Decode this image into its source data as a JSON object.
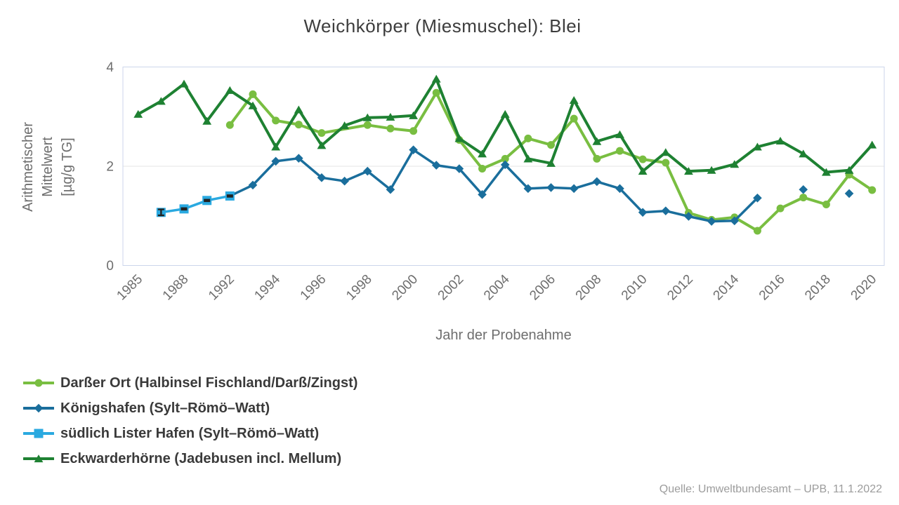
{
  "chart": {
    "title": "Weichkörper (Miesmuschel): Blei",
    "x_axis": {
      "title": "Jahr der Probenahme",
      "label_every_nth": 2
    },
    "y_axis": {
      "title_lines": [
        "Arithmetischer",
        "Mittelwert",
        "[µg/g TG]"
      ],
      "ticks": [
        0,
        2,
        4
      ]
    },
    "source": "Quelle: Umweltbundesamt – UPB, 11.1.2022",
    "colors": {
      "grid": "#e6e6e6",
      "plot_border": "#ccd6eb",
      "tick_text": "#6e6e6e",
      "error_bar": "#222222"
    }
  },
  "chart_data": {
    "type": "line",
    "title": "Weichkörper (Miesmuschel): Blei",
    "xlabel": "Jahr der Probenahme",
    "ylabel": "Arithmetischer Mittelwert [µg/g TG]",
    "ylim": [
      0,
      4
    ],
    "grid": "horizontal-at-2-only",
    "legend_position": "bottom-left",
    "categories": [
      1985,
      1986,
      1988,
      1990,
      1992,
      1993,
      1994,
      1995,
      1996,
      1997,
      1998,
      1999,
      2000,
      2001,
      2002,
      2003,
      2004,
      2005,
      2006,
      2007,
      2008,
      2009,
      2010,
      2011,
      2012,
      2013,
      2014,
      2015,
      2016,
      2017,
      2018,
      2019,
      2020
    ],
    "series": [
      {
        "name": "Darßer Ort (Halbinsel Fischland/Darß/Zingst)",
        "marker": "circle",
        "color": "#79be41",
        "line_width": 4,
        "points": [
          {
            "year": 1992,
            "value": 2.83
          },
          {
            "year": 1993,
            "value": 3.45
          },
          {
            "year": 1994,
            "value": 2.92
          },
          {
            "year": 1995,
            "value": 2.84
          },
          {
            "year": 1996,
            "value": 2.67
          },
          {
            "year": 1998,
            "value": 2.83
          },
          {
            "year": 1999,
            "value": 2.76
          },
          {
            "year": 2000,
            "value": 2.71
          },
          {
            "year": 2001,
            "value": 3.48
          },
          {
            "year": 2002,
            "value": 2.53
          },
          {
            "year": 2003,
            "value": 1.95
          },
          {
            "year": 2004,
            "value": 2.15
          },
          {
            "year": 2005,
            "value": 2.56
          },
          {
            "year": 2006,
            "value": 2.43
          },
          {
            "year": 2007,
            "value": 2.96
          },
          {
            "year": 2008,
            "value": 2.15
          },
          {
            "year": 2009,
            "value": 2.31
          },
          {
            "year": 2010,
            "value": 2.14
          },
          {
            "year": 2011,
            "value": 2.07
          },
          {
            "year": 2012,
            "value": 1.06
          },
          {
            "year": 2013,
            "value": 0.92
          },
          {
            "year": 2014,
            "value": 0.97
          },
          {
            "year": 2015,
            "value": 0.7
          },
          {
            "year": 2016,
            "value": 1.15
          },
          {
            "year": 2017,
            "value": 1.37
          },
          {
            "year": 2018,
            "value": 1.23
          },
          {
            "year": 2019,
            "value": 1.83
          },
          {
            "year": 2020,
            "value": 1.52
          }
        ]
      },
      {
        "name": "Königshafen (Sylt–Römö–Watt)",
        "marker": "diamond",
        "color": "#1a6e9c",
        "line_width": 3.5,
        "points": [
          {
            "year": 1992,
            "value": 1.4
          },
          {
            "year": 1993,
            "value": 1.62
          },
          {
            "year": 1994,
            "value": 2.1
          },
          {
            "year": 1995,
            "value": 2.16
          },
          {
            "year": 1996,
            "value": 1.77
          },
          {
            "year": 1997,
            "value": 1.7
          },
          {
            "year": 1998,
            "value": 1.9
          },
          {
            "year": 1999,
            "value": 1.53
          },
          {
            "year": 2000,
            "value": 2.33
          },
          {
            "year": 2001,
            "value": 2.02
          },
          {
            "year": 2002,
            "value": 1.95
          },
          {
            "year": 2003,
            "value": 1.43
          },
          {
            "year": 2004,
            "value": 2.03
          },
          {
            "year": 2005,
            "value": 1.55
          },
          {
            "year": 2006,
            "value": 1.57
          },
          {
            "year": 2007,
            "value": 1.55
          },
          {
            "year": 2008,
            "value": 1.69
          },
          {
            "year": 2009,
            "value": 1.55
          },
          {
            "year": 2010,
            "value": 1.07
          },
          {
            "year": 2011,
            "value": 1.1
          },
          {
            "year": 2012,
            "value": 0.99
          },
          {
            "year": 2013,
            "value": 0.89
          },
          {
            "year": 2014,
            "value": 0.9
          },
          {
            "year": 2015,
            "value": 1.36
          },
          {
            "year": 2017,
            "value": 1.53,
            "isolated": true
          },
          {
            "year": 2019,
            "value": 1.45,
            "isolated": true
          }
        ]
      },
      {
        "name": "südlich Lister Hafen (Sylt–Römö–Watt)",
        "marker": "square",
        "color": "#2aa9e0",
        "line_width": 3.5,
        "points": [
          {
            "year": 1986,
            "value": 1.07,
            "error": 0.06
          },
          {
            "year": 1988,
            "value": 1.14,
            "error": 0.015
          },
          {
            "year": 1990,
            "value": 1.31,
            "error": 0.015
          },
          {
            "year": 1992,
            "value": 1.4,
            "error": 0.015
          }
        ]
      },
      {
        "name": "Eckwarderhörne (Jadebusen incl. Mellum)",
        "marker": "triangle",
        "color": "#1e8132",
        "line_width": 4,
        "points": [
          {
            "year": 1985,
            "value": 3.05
          },
          {
            "year": 1986,
            "value": 3.31
          },
          {
            "year": 1988,
            "value": 3.66
          },
          {
            "year": 1990,
            "value": 2.91
          },
          {
            "year": 1992,
            "value": 3.53
          },
          {
            "year": 1993,
            "value": 3.22
          },
          {
            "year": 1994,
            "value": 2.39
          },
          {
            "year": 1995,
            "value": 3.14
          },
          {
            "year": 1996,
            "value": 2.42
          },
          {
            "year": 1997,
            "value": 2.82
          },
          {
            "year": 1998,
            "value": 2.98
          },
          {
            "year": 1999,
            "value": 2.99
          },
          {
            "year": 2000,
            "value": 3.02
          },
          {
            "year": 2001,
            "value": 3.76
          },
          {
            "year": 2002,
            "value": 2.56
          },
          {
            "year": 2003,
            "value": 2.25
          },
          {
            "year": 2004,
            "value": 3.05
          },
          {
            "year": 2005,
            "value": 2.15
          },
          {
            "year": 2006,
            "value": 2.06
          },
          {
            "year": 2007,
            "value": 3.33
          },
          {
            "year": 2008,
            "value": 2.5
          },
          {
            "year": 2009,
            "value": 2.64
          },
          {
            "year": 2010,
            "value": 1.9
          },
          {
            "year": 2011,
            "value": 2.28
          },
          {
            "year": 2012,
            "value": 1.9
          },
          {
            "year": 2013,
            "value": 1.92
          },
          {
            "year": 2014,
            "value": 2.04
          },
          {
            "year": 2015,
            "value": 2.39
          },
          {
            "year": 2016,
            "value": 2.51
          },
          {
            "year": 2017,
            "value": 2.25
          },
          {
            "year": 2018,
            "value": 1.88
          },
          {
            "year": 2019,
            "value": 1.92
          },
          {
            "year": 2020,
            "value": 2.43
          }
        ]
      }
    ]
  }
}
